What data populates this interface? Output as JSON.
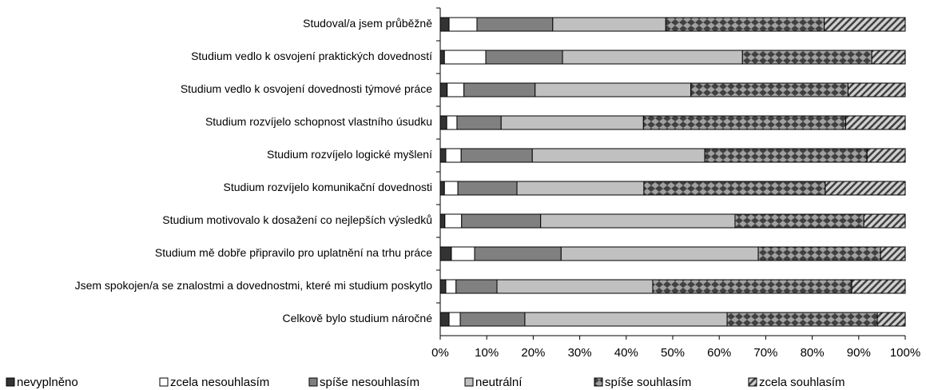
{
  "chart_data": {
    "type": "bar",
    "orientation": "horizontal",
    "stacked": true,
    "categories": [
      "Studoval/a jsem průběžně",
      "Studium vedlo k osvojení praktických dovedností",
      "Studium vedlo k osvojení dovednosti týmové práce ",
      "Studium rozvíjelo schopnost vlastního úsudku",
      "Studium rozvíjelo logické myšlení",
      "Studium rozvíjelo komunikační dovednosti",
      "Studium motivovalo k dosažení co nejlepších výsledků",
      "Studium mě dobře připravilo pro uplatnění na trhu práce",
      "Jsem spokojen/a se znalostmi a dovednostmi, které mi studium poskytlo",
      "Celkově bylo studium náročné"
    ],
    "series": [
      {
        "name": "nevyplněno",
        "color": "#333333",
        "values": [
          1.9,
          0.9,
          1.5,
          1.4,
          1.2,
          0.9,
          1.0,
          2.4,
          1.2,
          1.9
        ]
      },
      {
        "name": "zcela nesouhlasím",
        "color": "#ffffff",
        "values": [
          6.0,
          8.9,
          3.6,
          2.2,
          3.3,
          2.9,
          3.6,
          5.0,
          2.2,
          2.4
        ]
      },
      {
        "name": "spíše nesouhlasím",
        "color": "#808080",
        "values": [
          16.3,
          16.5,
          15.3,
          9.5,
          15.3,
          12.7,
          17.0,
          18.6,
          8.8,
          13.9
        ]
      },
      {
        "name": "neutrální",
        "color": "#c0c0c0",
        "values": [
          24.3,
          38.7,
          33.5,
          30.6,
          37.1,
          27.3,
          41.8,
          42.4,
          33.5,
          43.5
        ]
      },
      {
        "name": "spíše souhlasím",
        "color": "#a0a0a0",
        "pattern": "diamond",
        "values": [
          34.1,
          27.8,
          33.8,
          43.5,
          34.9,
          39.0,
          27.7,
          26.3,
          42.8,
          32.3
        ]
      },
      {
        "name": "zcela souhlasím",
        "color": "#d0d0d0",
        "pattern": "hatch",
        "values": [
          17.4,
          7.2,
          12.3,
          12.8,
          8.2,
          17.2,
          8.9,
          5.3,
          11.5,
          6.0
        ]
      }
    ],
    "xlim": [
      0,
      100
    ],
    "xticks": [
      {
        "value": 0,
        "label": "0%"
      },
      {
        "value": 10,
        "label": "10%"
      },
      {
        "value": 20,
        "label": "20%"
      },
      {
        "value": 30,
        "label": "30%"
      },
      {
        "value": 40,
        "label": "40%"
      },
      {
        "value": 50,
        "label": "50%"
      },
      {
        "value": 60,
        "label": "60%"
      },
      {
        "value": 70,
        "label": "70%"
      },
      {
        "value": 80,
        "label": "80%"
      },
      {
        "value": 90,
        "label": "90%"
      },
      {
        "value": 100,
        "label": "100%"
      }
    ],
    "legend": "bottom"
  }
}
